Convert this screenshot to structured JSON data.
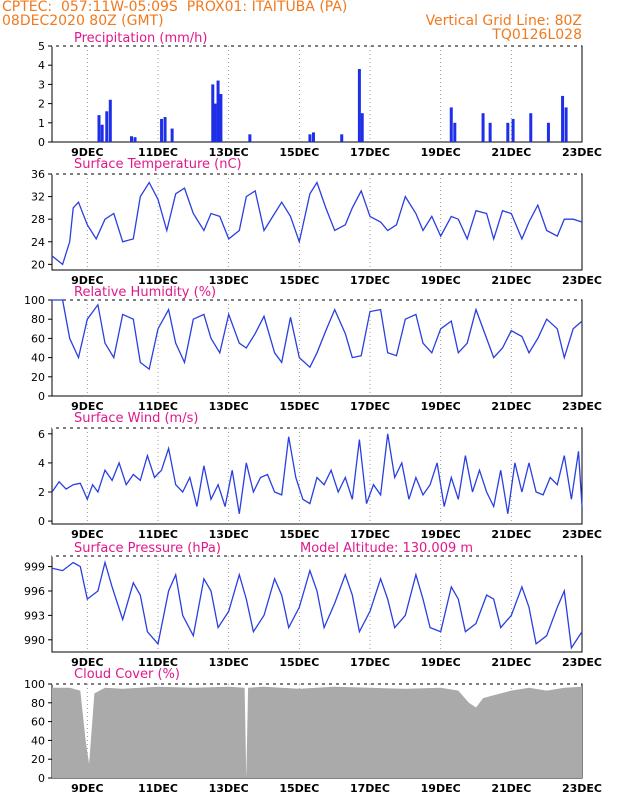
{
  "header": {
    "line1_left": "CPTEC:  057:11W-05:09S  PROX01: ITAITUBA (PA)",
    "line2_left": "08DEC2020 80Z (GMT)",
    "line2_right": "Vertical Grid Line: 80Z",
    "line3_right": "TQ0126L028",
    "model_altitude": "Model Altitude: 130.009  m"
  },
  "x_ticks": [
    "9DEC",
    "11DEC",
    "13DEC",
    "15DEC",
    "17DEC",
    "19DEC",
    "21DEC",
    "23DEC"
  ],
  "colors": {
    "header": "#f07a1f",
    "title": "#e0188c",
    "line": "#2a3fe0",
    "bar": "#1f2fe8",
    "cloud": "#aaaaaa"
  },
  "chart_data": [
    {
      "type": "bar",
      "title": "Precipitation (mm/h)",
      "ylim": [
        0,
        5
      ],
      "yticks": [
        "0",
        "1",
        "2",
        "3",
        "4",
        "5"
      ],
      "bars": [
        {
          "x": "9.33DEC",
          "value": 1.4
        },
        {
          "x": "9.42DEC",
          "value": 0.9
        },
        {
          "x": "9.55DEC",
          "value": 1.6
        },
        {
          "x": "9.65DEC",
          "value": 2.2
        },
        {
          "x": "10.25DEC",
          "value": 0.3
        },
        {
          "x": "10.35DEC",
          "value": 0.25
        },
        {
          "x": "11.1DEC",
          "value": 1.2
        },
        {
          "x": "11.2DEC",
          "value": 1.3
        },
        {
          "x": "11.4DEC",
          "value": 0.7
        },
        {
          "x": "12.55DEC",
          "value": 3.0
        },
        {
          "x": "12.62DEC",
          "value": 2.0
        },
        {
          "x": "12.7DEC",
          "value": 3.2
        },
        {
          "x": "12.78DEC",
          "value": 2.5
        },
        {
          "x": "13.6DEC",
          "value": 0.4
        },
        {
          "x": "15.3DEC",
          "value": 0.4
        },
        {
          "x": "15.4DEC",
          "value": 0.5
        },
        {
          "x": "16.2DEC",
          "value": 0.4
        },
        {
          "x": "16.7DEC",
          "value": 3.8
        },
        {
          "x": "16.78DEC",
          "value": 1.5
        },
        {
          "x": "19.3DEC",
          "value": 1.8
        },
        {
          "x": "19.4DEC",
          "value": 1.0
        },
        {
          "x": "20.2DEC",
          "value": 1.5
        },
        {
          "x": "20.4DEC",
          "value": 1.0
        },
        {
          "x": "20.9DEC",
          "value": 1.0
        },
        {
          "x": "21.05DEC",
          "value": 1.2
        },
        {
          "x": "21.55DEC",
          "value": 1.5
        },
        {
          "x": "22.05DEC",
          "value": 1.0
        },
        {
          "x": "22.45DEC",
          "value": 2.4
        },
        {
          "x": "22.55DEC",
          "value": 1.8
        }
      ]
    },
    {
      "type": "line",
      "title": "Surface Temperature (nC)",
      "ylim": [
        19,
        36
      ],
      "yticks": [
        "20",
        "24",
        "28",
        "32",
        "36"
      ],
      "x": [
        8.0,
        8.3,
        8.5,
        8.6,
        8.75,
        9.0,
        9.25,
        9.5,
        9.75,
        10.0,
        10.3,
        10.5,
        10.75,
        11.0,
        11.25,
        11.5,
        11.75,
        12.0,
        12.3,
        12.5,
        12.75,
        13.0,
        13.3,
        13.5,
        13.75,
        14.0,
        14.3,
        14.5,
        14.75,
        15.0,
        15.3,
        15.5,
        15.75,
        16.0,
        16.3,
        16.5,
        16.75,
        17.0,
        17.3,
        17.5,
        17.75,
        18.0,
        18.3,
        18.5,
        18.75,
        19.0,
        19.3,
        19.5,
        19.75,
        20.0,
        20.3,
        20.5,
        20.75,
        21.0,
        21.3,
        21.5,
        21.75,
        22.0,
        22.3,
        22.5,
        22.75,
        23.0
      ],
      "values": [
        21.5,
        20.0,
        24.0,
        30.0,
        31.0,
        27.0,
        24.5,
        28.0,
        29.0,
        24.0,
        24.5,
        32.0,
        34.5,
        31.5,
        26.0,
        32.5,
        33.5,
        29.0,
        26.0,
        29.0,
        28.5,
        24.5,
        26.0,
        32.0,
        33.0,
        26.0,
        29.0,
        31.0,
        28.5,
        24.0,
        32.5,
        34.5,
        30.0,
        26.0,
        27.0,
        30.0,
        33.0,
        28.5,
        27.5,
        26.0,
        27.0,
        32.0,
        29.0,
        26.0,
        28.5,
        25.0,
        28.5,
        28.0,
        24.5,
        29.5,
        29.0,
        24.5,
        29.5,
        29.0,
        24.5,
        27.5,
        30.5,
        26.0,
        25.0,
        28.0,
        28.0,
        27.5
      ]
    },
    {
      "type": "line",
      "title": "Relative Humidity (%)",
      "ylim": [
        0,
        100
      ],
      "yticks": [
        "0",
        "20",
        "40",
        "60",
        "80",
        "100"
      ],
      "x": [
        8.0,
        8.3,
        8.5,
        8.75,
        9.0,
        9.3,
        9.5,
        9.75,
        10.0,
        10.3,
        10.5,
        10.75,
        11.0,
        11.3,
        11.5,
        11.75,
        12.0,
        12.3,
        12.5,
        12.75,
        13.0,
        13.3,
        13.5,
        13.75,
        14.0,
        14.3,
        14.5,
        14.75,
        15.0,
        15.3,
        15.5,
        15.75,
        16.0,
        16.3,
        16.5,
        16.75,
        17.0,
        17.3,
        17.5,
        17.75,
        18.0,
        18.3,
        18.5,
        18.75,
        19.0,
        19.3,
        19.5,
        19.75,
        20.0,
        20.3,
        20.5,
        20.75,
        21.0,
        21.3,
        21.5,
        21.75,
        22.0,
        22.3,
        22.5,
        22.75,
        23.0
      ],
      "values": [
        100,
        100,
        60,
        40,
        80,
        95,
        55,
        40,
        85,
        80,
        35,
        28,
        70,
        90,
        55,
        35,
        80,
        85,
        60,
        45,
        85,
        55,
        50,
        65,
        83,
        45,
        35,
        82,
        40,
        30,
        45,
        68,
        90,
        65,
        40,
        42,
        88,
        90,
        45,
        42,
        80,
        85,
        55,
        45,
        70,
        78,
        45,
        55,
        90,
        60,
        40,
        50,
        68,
        62,
        45,
        60,
        80,
        70,
        40,
        70,
        78
      ]
    },
    {
      "type": "line",
      "title": "Surface Wind (m/s)",
      "ylim": [
        -0.2,
        6.4
      ],
      "yticks": [
        "0",
        "2",
        "4",
        "6"
      ],
      "x": [
        8.0,
        8.2,
        8.4,
        8.6,
        8.8,
        9.0,
        9.15,
        9.3,
        9.5,
        9.7,
        9.9,
        10.1,
        10.3,
        10.5,
        10.7,
        10.9,
        11.1,
        11.3,
        11.5,
        11.7,
        11.9,
        12.1,
        12.3,
        12.5,
        12.7,
        12.9,
        13.1,
        13.3,
        13.5,
        13.7,
        13.9,
        14.1,
        14.3,
        14.5,
        14.7,
        14.9,
        15.1,
        15.3,
        15.5,
        15.7,
        15.9,
        16.1,
        16.3,
        16.5,
        16.7,
        16.9,
        17.1,
        17.3,
        17.5,
        17.7,
        17.9,
        18.1,
        18.3,
        18.5,
        18.7,
        18.9,
        19.1,
        19.3,
        19.5,
        19.7,
        19.9,
        20.1,
        20.3,
        20.5,
        20.7,
        20.9,
        21.1,
        21.3,
        21.5,
        21.7,
        21.9,
        22.1,
        22.3,
        22.5,
        22.7,
        22.9,
        23.0
      ],
      "values": [
        2.0,
        2.7,
        2.2,
        2.5,
        2.6,
        1.5,
        2.5,
        2.0,
        3.5,
        2.8,
        4.0,
        2.5,
        3.2,
        2.8,
        4.5,
        3.0,
        3.5,
        5.0,
        2.5,
        2.0,
        3.0,
        1.0,
        3.8,
        1.5,
        2.5,
        1.0,
        3.5,
        0.5,
        4.0,
        2.0,
        3.0,
        3.2,
        2.0,
        1.8,
        5.8,
        3.0,
        1.5,
        1.2,
        3.0,
        2.5,
        3.5,
        2.0,
        3.0,
        1.5,
        5.6,
        1.2,
        2.5,
        1.8,
        6.0,
        3.0,
        4.0,
        1.5,
        3.0,
        1.8,
        2.5,
        4.0,
        1.0,
        3.0,
        1.5,
        4.5,
        2.0,
        3.5,
        2.0,
        1.0,
        3.5,
        0.5,
        4.0,
        2.0,
        4.0,
        2.0,
        1.8,
        3.0,
        2.5,
        4.5,
        1.5,
        4.8,
        1.0
      ]
    },
    {
      "type": "line",
      "title": "Surface Pressure (hPa)",
      "ylim": [
        988.5,
        1000.3
      ],
      "yticks": [
        "990",
        "993",
        "996",
        "999"
      ],
      "x": [
        8.0,
        8.3,
        8.6,
        8.8,
        9.0,
        9.3,
        9.5,
        9.7,
        10.0,
        10.3,
        10.5,
        10.7,
        11.0,
        11.3,
        11.5,
        11.7,
        12.0,
        12.3,
        12.5,
        12.7,
        13.0,
        13.3,
        13.5,
        13.7,
        14.0,
        14.3,
        14.5,
        14.7,
        15.0,
        15.3,
        15.5,
        15.7,
        16.0,
        16.3,
        16.5,
        16.7,
        17.0,
        17.3,
        17.5,
        17.7,
        18.0,
        18.3,
        18.5,
        18.7,
        19.0,
        19.3,
        19.5,
        19.7,
        20.0,
        20.3,
        20.5,
        20.7,
        21.0,
        21.3,
        21.5,
        21.7,
        22.0,
        22.3,
        22.5,
        22.7,
        23.0
      ],
      "values": [
        998.8,
        998.5,
        999.5,
        999.0,
        995.0,
        996.0,
        999.5,
        996.5,
        992.5,
        997.0,
        995.5,
        991.0,
        989.5,
        996.0,
        998.0,
        993.0,
        990.5,
        997.5,
        996.0,
        991.5,
        993.5,
        998.0,
        995.0,
        991.0,
        993.0,
        997.5,
        995.5,
        991.5,
        994.0,
        998.5,
        996.0,
        991.5,
        994.5,
        998.0,
        995.5,
        991.0,
        993.5,
        997.5,
        995.0,
        991.5,
        993.0,
        998.0,
        995.0,
        991.5,
        991.0,
        996.5,
        995.0,
        991.0,
        992.0,
        995.5,
        995.0,
        991.5,
        993.0,
        996.5,
        994.0,
        989.5,
        990.5,
        994.0,
        996.0,
        989.0,
        991.0
      ]
    },
    {
      "type": "area",
      "title": "Cloud Cover (%)",
      "ylim": [
        0,
        100
      ],
      "yticks": [
        "0",
        "20",
        "40",
        "60",
        "80",
        "100"
      ],
      "x": [
        8.0,
        8.5,
        8.8,
        8.95,
        9.05,
        9.2,
        9.5,
        10.0,
        11.0,
        12.0,
        13.0,
        13.45,
        13.5,
        13.55,
        14.0,
        15.0,
        16.0,
        17.0,
        18.0,
        19.0,
        19.5,
        19.8,
        20.0,
        20.2,
        20.5,
        21.0,
        21.5,
        22.0,
        22.5,
        23.0
      ],
      "values": [
        96,
        96,
        93,
        40,
        15,
        90,
        96,
        95,
        97,
        96,
        97,
        96,
        0,
        96,
        97,
        95,
        97,
        96,
        95,
        96,
        93,
        80,
        75,
        85,
        88,
        93,
        96,
        93,
        96,
        97
      ]
    }
  ]
}
